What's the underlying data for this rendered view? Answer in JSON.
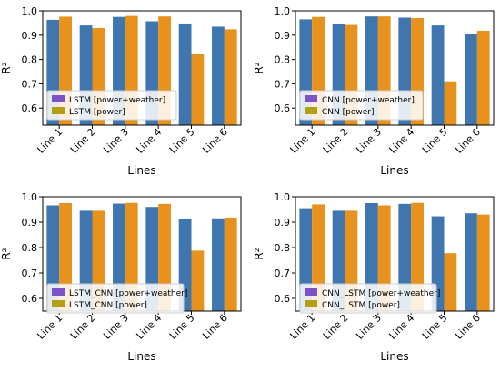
{
  "colors": {
    "series1": "#3f76b0",
    "series2": "#e8921e",
    "legend1": "#7b52c8",
    "legend2": "#b3a012"
  },
  "chart_data": [
    {
      "type": "bar",
      "categories": [
        "Line 1",
        "Line 2",
        "Line 3",
        "Line 4",
        "Line 5",
        "Line 6"
      ],
      "series": [
        {
          "name": "LSTM [power+weather]",
          "values": [
            0.963,
            0.94,
            0.975,
            0.957,
            0.948,
            0.935
          ]
        },
        {
          "name": "LSTM [power]",
          "values": [
            0.976,
            0.929,
            0.979,
            0.977,
            0.822,
            0.924
          ]
        }
      ],
      "xlabel": "Lines",
      "ylabel": "R²",
      "ylim": [
        0.53,
        1.0
      ],
      "yticks": [
        "0.6",
        "0.7",
        "0.8",
        "0.9",
        "1.0"
      ],
      "yticks_values": [
        0.6,
        0.7,
        0.8,
        0.9,
        1.0
      ],
      "legend": "lower-left",
      "grid": false
    },
    {
      "type": "bar",
      "categories": [
        "Line 1",
        "Line 2",
        "Line 3",
        "Line 4",
        "Line 5",
        "Line 6"
      ],
      "series": [
        {
          "name": "CNN [power+weather]",
          "values": [
            0.965,
            0.945,
            0.977,
            0.972,
            0.94,
            0.905
          ]
        },
        {
          "name": "CNN [power]",
          "values": [
            0.975,
            0.942,
            0.977,
            0.97,
            0.71,
            0.918
          ]
        }
      ],
      "xlabel": "Lines",
      "ylabel": "R²",
      "ylim": [
        0.53,
        1.0
      ],
      "yticks": [
        "0.6",
        "0.7",
        "0.8",
        "0.9",
        "1.0"
      ],
      "yticks_values": [
        0.6,
        0.7,
        0.8,
        0.9,
        1.0
      ],
      "legend": "lower-left",
      "grid": false
    },
    {
      "type": "bar",
      "categories": [
        "Line 1",
        "Line 2",
        "Line 3",
        "Line 4",
        "Line 5",
        "Line 6"
      ],
      "series": [
        {
          "name": "LSTM_CNN [power+weather]",
          "values": [
            0.966,
            0.945,
            0.973,
            0.96,
            0.913,
            0.915
          ]
        },
        {
          "name": "LSTM_CNN [power]",
          "values": [
            0.975,
            0.945,
            0.976,
            0.972,
            0.788,
            0.918
          ]
        }
      ],
      "xlabel": "Lines",
      "ylabel": "R²",
      "ylim": [
        0.55,
        1.0
      ],
      "yticks": [
        "0.6",
        "0.7",
        "0.8",
        "0.9",
        "1.0"
      ],
      "yticks_values": [
        0.6,
        0.7,
        0.8,
        0.9,
        1.0
      ],
      "legend": "lower-left",
      "grid": false
    },
    {
      "type": "bar",
      "categories": [
        "Line 1",
        "Line 2",
        "Line 3",
        "Line 4",
        "Line 5",
        "Line 6"
      ],
      "series": [
        {
          "name": "CNN_LSTM [power+weather]",
          "values": [
            0.955,
            0.945,
            0.975,
            0.972,
            0.923,
            0.935
          ]
        },
        {
          "name": "CNN_LSTM [power]",
          "values": [
            0.97,
            0.945,
            0.966,
            0.976,
            0.778,
            0.93
          ]
        }
      ],
      "xlabel": "Lines",
      "ylabel": "R²",
      "ylim": [
        0.55,
        1.0
      ],
      "yticks": [
        "0.6",
        "0.7",
        "0.8",
        "0.9",
        "1.0"
      ],
      "yticks_values": [
        0.6,
        0.7,
        0.8,
        0.9,
        1.0
      ],
      "legend": "lower-left",
      "grid": false
    }
  ]
}
